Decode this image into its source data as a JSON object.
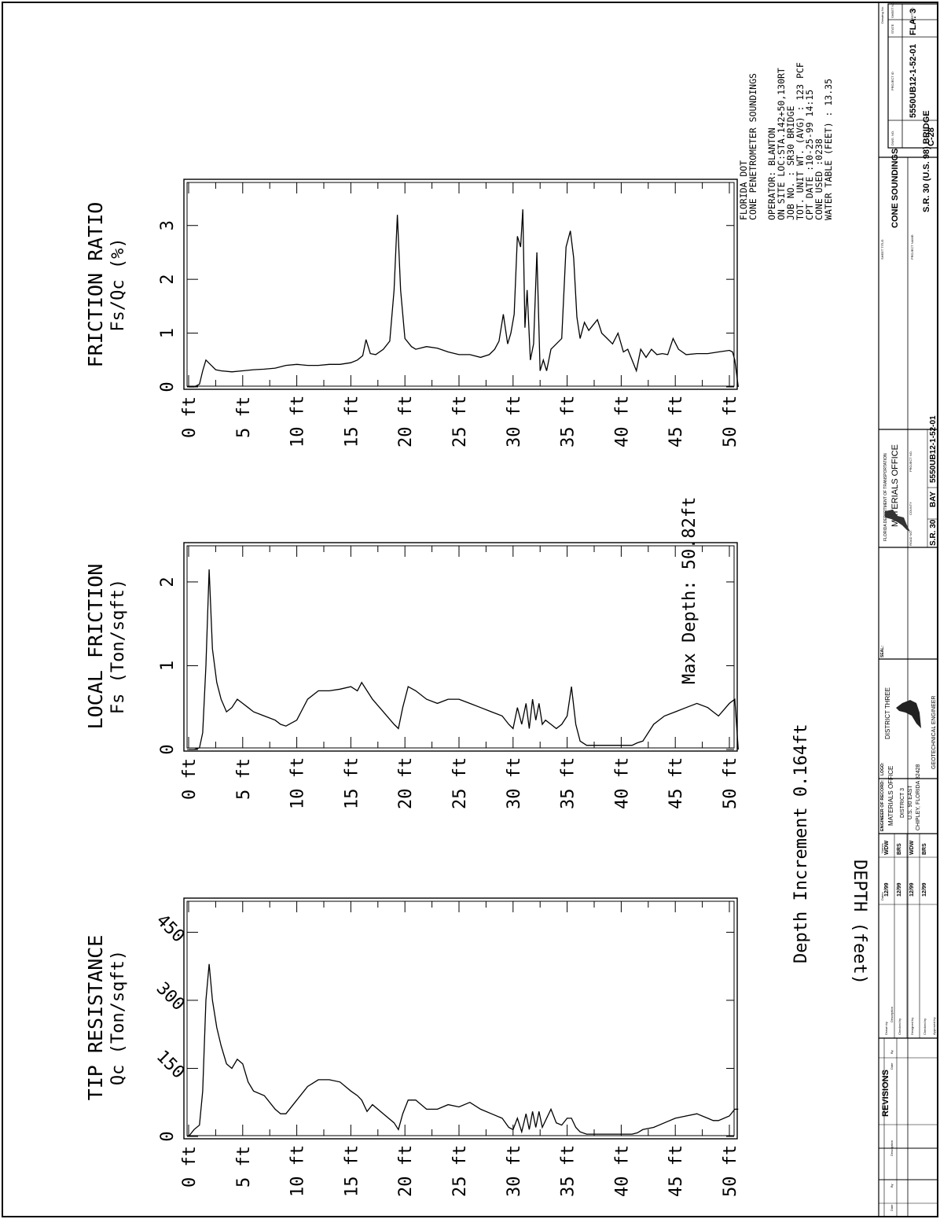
{
  "project_box": {
    "sheet_no_label": "SHEET NO.",
    "sheet_no": "3",
    "state_label": "STATE",
    "state": "FLA.",
    "project_id_label": "PROJECT ID",
    "project_id": "5550UB12-1-52-01",
    "dwg_no_label": "DWG. NO.",
    "dwg_no": "C-28"
  },
  "info_block": [
    "FLORIDA DOT",
    "CONE PENETROMETER SOUNDINGS",
    "",
    "OPERATOR:    BLANTON",
    "ON SITE LOC:STA.142+50,130RT",
    "JOB NO.  :   SR30 BRIDGE",
    "TOT. UNIT WT. (AVG) : 123 PCF",
    "CPT DATE   :10-25-99 14:15",
    "CONE USED  :0238",
    "WATER TABLE (FEET) : 13.35"
  ],
  "footer_texts": {
    "max_depth": "Max Depth: 50.82ft",
    "depth_increment": "Depth Increment 0.164ft",
    "depth_axis_label": "DEPTH (feet)"
  },
  "chart_data": [
    {
      "type": "line",
      "title": "FRICTION RATIO",
      "ylabel": "Fs/Qc (%)",
      "xlabel": "DEPTH (feet)",
      "x_ticks": [
        "0 ft",
        "5 ft",
        "10 ft",
        "15 ft",
        "20 ft",
        "25 ft",
        "30 ft",
        "35 ft",
        "40 ft",
        "45 ft",
        "50 ft"
      ],
      "y_ticks": [
        "0",
        "1",
        "2",
        "3"
      ],
      "xlim": [
        0,
        51
      ],
      "ylim": [
        0,
        3.8
      ],
      "grid": false,
      "x": [
        0,
        0.5,
        1.0,
        1.3,
        1.6,
        2.0,
        2.5,
        3,
        4,
        5,
        6,
        7,
        8,
        9,
        10,
        11,
        12,
        13,
        14,
        15,
        15.6,
        16.1,
        16.4,
        16.8,
        17.3,
        18,
        18.6,
        19,
        19.3,
        19.6,
        20,
        20.6,
        21,
        22,
        23,
        24,
        25,
        26,
        27,
        27.8,
        28.3,
        28.7,
        29.1,
        29.5,
        29.8,
        30.1,
        30.4,
        30.7,
        30.9,
        31.1,
        31.3,
        31.6,
        31.9,
        32.2,
        32.5,
        32.8,
        33.1,
        33.5,
        34,
        34.5,
        34.9,
        35.3,
        35.6,
        35.9,
        36.2,
        36.6,
        37,
        37.4,
        37.8,
        38.2,
        38.7,
        39.2,
        39.7,
        40.2,
        40.6,
        41,
        41.4,
        41.8,
        42.3,
        42.8,
        43.3,
        43.8,
        44.3,
        44.8,
        45.3,
        46,
        47,
        48,
        49,
        50,
        50.3,
        50.5,
        50.82
      ],
      "series": [
        {
          "values": [
            0,
            0,
            0.05,
            0.3,
            0.5,
            0.42,
            0.32,
            0.3,
            0.28,
            0.3,
            0.32,
            0.33,
            0.35,
            0.4,
            0.42,
            0.4,
            0.4,
            0.42,
            0.42,
            0.45,
            0.5,
            0.58,
            0.88,
            0.62,
            0.6,
            0.7,
            0.85,
            1.8,
            3.2,
            1.8,
            0.9,
            0.75,
            0.7,
            0.75,
            0.72,
            0.65,
            0.6,
            0.6,
            0.55,
            0.6,
            0.7,
            0.85,
            1.35,
            0.8,
            1.0,
            1.35,
            2.8,
            2.6,
            3.3,
            1.1,
            1.8,
            0.5,
            0.8,
            2.5,
            0.3,
            0.5,
            0.3,
            0.7,
            0.8,
            0.9,
            2.6,
            2.9,
            2.4,
            1.3,
            0.9,
            1.2,
            1.05,
            1.15,
            1.25,
            1.0,
            0.9,
            0.8,
            1.0,
            0.65,
            0.7,
            0.5,
            0.3,
            0.7,
            0.55,
            0.7,
            0.6,
            0.62,
            0.6,
            0.9,
            0.7,
            0.6,
            0.62,
            0.62,
            0.65,
            0.68,
            0.65,
            0.5,
            0
          ]
        }
      ]
    },
    {
      "type": "line",
      "title": "LOCAL FRICTION",
      "ylabel": "Fs (Ton/sqft)",
      "xlabel": "DEPTH (feet)",
      "x_ticks": [
        "0 ft",
        "5 ft",
        "10 ft",
        "15 ft",
        "20 ft",
        "25 ft",
        "30 ft",
        "35 ft",
        "40 ft",
        "45 ft",
        "50 ft"
      ],
      "y_ticks": [
        "0",
        "1",
        "2"
      ],
      "xlim": [
        0,
        51
      ],
      "ylim": [
        0,
        2.45
      ],
      "grid": false,
      "x": [
        0,
        0.5,
        1.0,
        1.3,
        1.6,
        1.9,
        2.2,
        2.6,
        3,
        3.5,
        4,
        4.5,
        5,
        5.5,
        6,
        7,
        8,
        8.5,
        9,
        10,
        11,
        12,
        13,
        14,
        15,
        15.6,
        16,
        16.5,
        17,
        18,
        19,
        19.4,
        19.8,
        20.3,
        21,
        22,
        23,
        24,
        25,
        26,
        27,
        28,
        29,
        29.6,
        30,
        30.4,
        30.8,
        31.2,
        31.5,
        31.8,
        32.1,
        32.4,
        32.7,
        33,
        33.5,
        34,
        34.5,
        35,
        35.4,
        35.8,
        36.2,
        36.8,
        38,
        40,
        41,
        41.5,
        42,
        43,
        44,
        45,
        46,
        47,
        48,
        48.5,
        49,
        50,
        50.5,
        50.82
      ],
      "series": [
        {
          "values": [
            0,
            0,
            0.02,
            0.2,
            1.0,
            2.15,
            1.2,
            0.8,
            0.6,
            0.45,
            0.5,
            0.6,
            0.55,
            0.5,
            0.45,
            0.4,
            0.35,
            0.3,
            0.28,
            0.35,
            0.6,
            0.7,
            0.7,
            0.72,
            0.75,
            0.7,
            0.8,
            0.7,
            0.6,
            0.45,
            0.3,
            0.25,
            0.5,
            0.75,
            0.7,
            0.6,
            0.55,
            0.6,
            0.6,
            0.55,
            0.5,
            0.45,
            0.4,
            0.3,
            0.25,
            0.5,
            0.3,
            0.55,
            0.25,
            0.6,
            0.35,
            0.55,
            0.3,
            0.35,
            0.3,
            0.25,
            0.3,
            0.4,
            0.75,
            0.3,
            0.1,
            0.05,
            0.05,
            0.05,
            0.05,
            0.08,
            0.1,
            0.3,
            0.4,
            0.45,
            0.5,
            0.55,
            0.5,
            0.45,
            0.4,
            0.55,
            0.6,
            0
          ]
        }
      ]
    },
    {
      "type": "line",
      "title": "TIP RESISTANCE",
      "ylabel": "Qc (Ton/sqft)",
      "xlabel": "DEPTH (feet)",
      "x_ticks": [
        "0 ft",
        "5 ft",
        "10 ft",
        "15 ft",
        "20 ft",
        "25 ft",
        "30 ft",
        "35 ft",
        "40 ft",
        "45 ft",
        "50 ft"
      ],
      "y_ticks": [
        "0",
        "150",
        "300",
        "450"
      ],
      "xlim": [
        0,
        51
      ],
      "ylim": [
        0,
        520
      ],
      "grid": false,
      "x": [
        0,
        0.5,
        1.0,
        1.3,
        1.6,
        1.9,
        2.2,
        2.6,
        3,
        3.5,
        4,
        4.5,
        5,
        5.5,
        6,
        7,
        8,
        8.5,
        9,
        10,
        11,
        12,
        13,
        14,
        15,
        15.6,
        16,
        16.5,
        17,
        18,
        19,
        19.4,
        19.8,
        20.3,
        21,
        22,
        23,
        24,
        25,
        26,
        27,
        28,
        29,
        29.6,
        30,
        30.4,
        30.8,
        31.2,
        31.5,
        31.8,
        32.1,
        32.4,
        32.7,
        33,
        33.5,
        34,
        34.5,
        35,
        35.4,
        35.8,
        36.2,
        36.8,
        38,
        40,
        41,
        41.5,
        42,
        43,
        44,
        45,
        46,
        47,
        48,
        48.5,
        49,
        50,
        50.5,
        50.82
      ],
      "series": [
        {
          "values": [
            0,
            15,
            25,
            100,
            300,
            380,
            300,
            240,
            200,
            160,
            150,
            170,
            160,
            120,
            100,
            90,
            60,
            50,
            50,
            80,
            110,
            125,
            125,
            120,
            100,
            90,
            80,
            55,
            70,
            50,
            30,
            15,
            50,
            80,
            80,
            60,
            60,
            70,
            65,
            75,
            60,
            50,
            40,
            20,
            15,
            40,
            10,
            50,
            15,
            55,
            20,
            55,
            20,
            35,
            60,
            30,
            25,
            40,
            40,
            20,
            10,
            5,
            5,
            5,
            5,
            8,
            15,
            20,
            30,
            40,
            45,
            50,
            40,
            35,
            35,
            45,
            60,
            60
          ]
        }
      ]
    }
  ],
  "title_block": {
    "revisions_title": "REVISIONS",
    "rev_headers": [
      "Date",
      "By",
      "Description"
    ],
    "signoff_headers": [
      "Names",
      "Dates"
    ],
    "signoff": [
      {
        "role": "Drawn by",
        "name": "WDW",
        "date": "12/99"
      },
      {
        "role": "Checked by",
        "name": "BRS",
        "date": "12/99"
      },
      {
        "role": "Designed by",
        "name": "WDW",
        "date": "12/99"
      },
      {
        "role": "Checked by",
        "name": "BRS",
        "date": "12/99"
      },
      {
        "role": "Approved by",
        "name": "",
        "date": ""
      }
    ],
    "engineer_of_record_label": "ENGINEER OF RECORD:",
    "engineer_lines": [
      "MATERIALS OFFICE",
      "DISTRICT 3",
      "U.S. 90 EAST",
      "CHIPLEY, FLORIDA 32428"
    ],
    "logo_label": "LOGO:",
    "logo_lines": [
      "DISTRICT THREE"
    ],
    "logo_caption": "GEOTECHNICAL ENGINEER",
    "seal_label": "SEAL:",
    "fdot_line1": "FLORIDA DEPARTMENT OF TRANSPORTATION",
    "fdot_line2": "MATERIALS OFFICE",
    "road_no_label": "ROAD NO.",
    "road_no": "S.R. 30",
    "county_label": "COUNTY",
    "county": "BAY",
    "project_no_label": "PROJECT NO.",
    "project_no": "5550UB12-1-52-01",
    "sheet_title_label": "SHEET TITLE:",
    "sheet_title": "CONE SOUNDINGS",
    "project_name_label": "PROJECT NAME:",
    "project_name": "S.R. 30 (U.S. 98) BRIDGE",
    "drawing_no_label": "Drawing No.",
    "sheet_no_label": "SHEET NO."
  }
}
